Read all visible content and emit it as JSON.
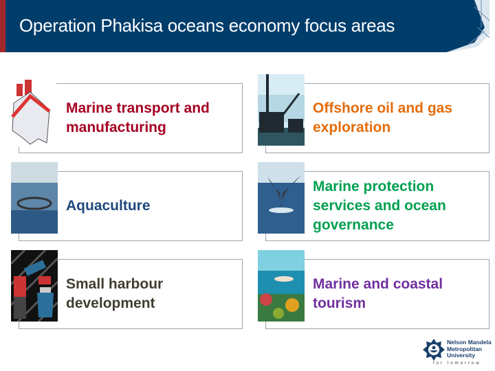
{
  "header": {
    "title": "Operation Phakisa oceans economy focus areas"
  },
  "colors": {
    "header_bg": "#003d6b",
    "header_accent": "#a0282c"
  },
  "areas": [
    {
      "label": "Marine transport and manufacturing",
      "color": "#a50021",
      "image": "ship-icon"
    },
    {
      "label": "Offshore oil and gas exploration",
      "color": "#e46c0a",
      "image": "oil-rig-image"
    },
    {
      "label": "Aquaculture",
      "color": "#1f497d",
      "image": "fish-farm-image"
    },
    {
      "label": "Marine protection services and ocean governance",
      "color": "#00a050",
      "image": "whale-tail-image"
    },
    {
      "label": "Small harbour development",
      "color": "#403d30",
      "image": "harbour-crane-icon"
    },
    {
      "label": "Marine and coastal tourism",
      "color": "#7030a0",
      "image": "diver-reef-image"
    }
  ],
  "logo": {
    "name_line1": "Nelson Mandela",
    "name_line2": "Metropolitan",
    "name_line3": "University",
    "tagline": "for tomorrow"
  }
}
